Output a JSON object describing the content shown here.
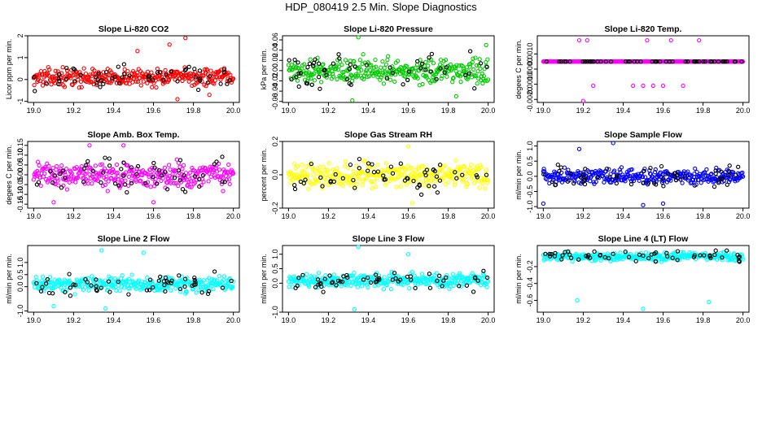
{
  "main_title": "HDP_080419  2.5 Min. Slope Diagnostics",
  "chart_data": [
    {
      "id": "co2",
      "type": "scatter",
      "title": "Slope Li-820 CO2",
      "ylabel": "Licor ppm per min.",
      "color": "#ff0000",
      "xlim": [
        18.97,
        20.03
      ],
      "ylim": [
        -1.05,
        2.0
      ],
      "xticks": [
        "19.0",
        "19.2",
        "19.4",
        "19.6",
        "19.8",
        "20.0"
      ],
      "yticks": [
        "-1",
        "0",
        "1",
        "2"
      ],
      "noise": {
        "center": 0.1,
        "spread": 0.55,
        "outliers": [
          [
            19.68,
            1.6
          ],
          [
            19.76,
            1.9
          ],
          [
            19.72,
            -0.9
          ],
          [
            19.88,
            -0.7
          ],
          [
            19.52,
            1.3
          ]
        ]
      }
    },
    {
      "id": "pressure",
      "type": "scatter",
      "title": "Slope Li-820 Pressure",
      "ylabel": "kPa per min.",
      "color": "#00cc00",
      "xlim": [
        18.97,
        20.03
      ],
      "ylim": [
        -0.062,
        0.068
      ],
      "xticks": [
        "19.0",
        "19.2",
        "19.4",
        "19.6",
        "19.8",
        "20.0"
      ],
      "yticks": [
        "-0.06",
        "-0.04",
        "-0.02",
        "0.00",
        "0.02",
        "0.04",
        "0.06"
      ],
      "noise": {
        "center": 0.0,
        "spread": 0.035,
        "outliers": [
          [
            19.35,
            0.065
          ],
          [
            19.32,
            -0.058
          ],
          [
            19.99,
            0.05
          ],
          [
            19.84,
            -0.05
          ]
        ]
      }
    },
    {
      "id": "temp",
      "type": "scatter",
      "title": "Slope Li-820 Temp.",
      "ylabel": "degees C per min.",
      "color": "#ff00ff",
      "xlim": [
        18.97,
        20.03
      ],
      "ylim": [
        -0.0022,
        0.0022
      ],
      "xticks": [
        "19.0",
        "19.2",
        "19.4",
        "19.6",
        "19.8",
        "20.0"
      ],
      "yticks": [
        "-0.0020",
        "-0.0010",
        "0.0000",
        "0.0010"
      ],
      "noise": {
        "center": 0.0005,
        "spread": 0.0,
        "outliers": [
          [
            19.18,
            0.0019
          ],
          [
            19.22,
            0.0019
          ],
          [
            19.52,
            0.0019
          ],
          [
            19.78,
            0.0019
          ],
          [
            19.64,
            0.0019
          ],
          [
            19.25,
            -0.0011
          ],
          [
            19.45,
            -0.0011
          ],
          [
            19.5,
            -0.0011
          ],
          [
            19.55,
            -0.0011
          ],
          [
            19.6,
            -0.0011
          ],
          [
            19.7,
            -0.0011
          ],
          [
            19.2,
            -0.0021
          ]
        ]
      }
    },
    {
      "id": "boxtemp",
      "type": "scatter",
      "title": "Slope Amb. Box Temp.",
      "ylabel": "degees C per min.",
      "color": "#ff00ff",
      "xlim": [
        18.97,
        20.03
      ],
      "ylim": [
        -0.17,
        0.17
      ],
      "xticks": [
        "19.0",
        "19.2",
        "19.4",
        "19.6",
        "19.8",
        "20.0"
      ],
      "yticks": [
        "-0.15",
        "-0.10",
        "-0.05",
        "0.00",
        "0.05",
        "0.10",
        "0.15"
      ],
      "noise": {
        "center": 0.0,
        "spread": 0.09,
        "outliers": [
          [
            19.28,
            0.15
          ],
          [
            19.45,
            0.15
          ],
          [
            19.1,
            -0.14
          ],
          [
            19.6,
            -0.14
          ]
        ]
      }
    },
    {
      "id": "rh",
      "type": "scatter",
      "title": "Slope Gas Stream RH",
      "ylabel": "percent per min.",
      "color": "#ffff00",
      "xlim": [
        18.97,
        20.03
      ],
      "ylim": [
        -0.2,
        0.2
      ],
      "xticks": [
        "19.0",
        "19.2",
        "19.4",
        "19.6",
        "19.8",
        "20.0"
      ],
      "yticks": [
        "-0.2",
        "0.0",
        "0.2"
      ],
      "noise": {
        "center": 0.0,
        "spread": 0.11,
        "outliers": [
          [
            19.6,
            0.17
          ],
          [
            19.62,
            -0.17
          ]
        ]
      }
    },
    {
      "id": "sampleflow",
      "type": "scatter",
      "title": "Slope Sample Flow",
      "ylabel": "ml/min per min.",
      "color": "#0000ff",
      "xlim": [
        18.97,
        20.03
      ],
      "ylim": [
        -1.05,
        1.15
      ],
      "xticks": [
        "19.0",
        "19.2",
        "19.4",
        "19.6",
        "19.8",
        "20.0"
      ],
      "yticks": [
        "-1.0",
        "-0.5",
        "0.0",
        "0.5",
        "1.0"
      ],
      "noise": {
        "center": 0.0,
        "spread": 0.35,
        "outliers": [
          [
            19.35,
            1.1
          ],
          [
            19.18,
            0.9
          ],
          [
            19.5,
            -0.95
          ],
          [
            19.0,
            -0.9
          ],
          [
            19.6,
            -0.9
          ]
        ]
      }
    },
    {
      "id": "line2",
      "type": "scatter",
      "title": "Slope Line 2 Flow",
      "ylabel": "ml/min per min.",
      "color": "#00ffff",
      "xlim": [
        18.97,
        20.03
      ],
      "ylim": [
        -1.05,
        1.7
      ],
      "xticks": [
        "19.0",
        "19.2",
        "19.4",
        "19.6",
        "19.8",
        "20.0"
      ],
      "yticks": [
        "-1.0",
        "0.0",
        "0.5",
        "1.0"
      ],
      "noise": {
        "center": 0.1,
        "spread": 0.45,
        "outliers": [
          [
            19.34,
            1.5
          ],
          [
            19.55,
            1.4
          ],
          [
            19.36,
            -0.9
          ],
          [
            19.1,
            -0.8
          ]
        ]
      }
    },
    {
      "id": "line3",
      "type": "scatter",
      "title": "Slope Line 3 Flow",
      "ylabel": "ml/min per min.",
      "color": "#00ffff",
      "xlim": [
        18.97,
        20.03
      ],
      "ylim": [
        -1.0,
        1.3
      ],
      "xticks": [
        "19.0",
        "19.2",
        "19.4",
        "19.6",
        "19.8",
        "20.0"
      ],
      "yticks": [
        "-1.0",
        "0.0",
        "0.5",
        "1.0"
      ],
      "noise": {
        "center": 0.1,
        "spread": 0.35,
        "outliers": [
          [
            19.35,
            1.25
          ],
          [
            19.33,
            -0.9
          ],
          [
            19.6,
            1.0
          ]
        ]
      }
    },
    {
      "id": "line4",
      "type": "scatter",
      "title": "Slope Line 4 (LT) Flow",
      "ylabel": "ml/min per min.",
      "color": "#00ffff",
      "xlim": [
        18.97,
        20.03
      ],
      "ylim": [
        -0.74,
        0.05
      ],
      "xticks": [
        "19.0",
        "19.2",
        "19.4",
        "19.6",
        "19.8",
        "20.0"
      ],
      "yticks": [
        "-0.6",
        "-0.4",
        "-0.2"
      ],
      "noise": {
        "center": -0.08,
        "spread": 0.07,
        "outliers": [
          [
            19.17,
            -0.6
          ],
          [
            19.5,
            -0.7
          ],
          [
            19.83,
            -0.62
          ]
        ]
      }
    }
  ]
}
